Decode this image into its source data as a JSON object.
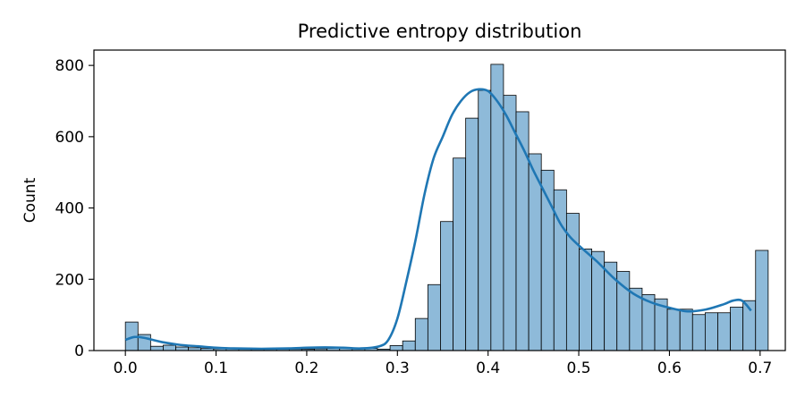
{
  "chart_data": {
    "type": "bar",
    "title": "Predictive entropy distribution",
    "xlabel": "",
    "ylabel": "Count",
    "xlim": [
      -0.0347,
      0.7278
    ],
    "ylim": [
      0,
      843
    ],
    "grid": false,
    "bin_width": 0.0139,
    "bins_start": 0.0,
    "xticks": [
      "0.0",
      "0.1",
      "0.2",
      "0.3",
      "0.4",
      "0.5",
      "0.6",
      "0.7"
    ],
    "xtick_values": [
      0.0,
      0.1,
      0.2,
      0.3,
      0.4,
      0.5,
      0.6,
      0.7
    ],
    "yticks": [
      "0",
      "200",
      "400",
      "600",
      "800"
    ],
    "ytick_values": [
      0,
      200,
      400,
      600,
      800
    ],
    "values": [
      80,
      45,
      12,
      15,
      10,
      8,
      6,
      5,
      5,
      4,
      4,
      4,
      4,
      4,
      4,
      5,
      6,
      8,
      7,
      6,
      4,
      14,
      27,
      90,
      185,
      362,
      540,
      652,
      730,
      803,
      716,
      670,
      552,
      506,
      451,
      385,
      285,
      278,
      248,
      222,
      175,
      157,
      145,
      116,
      116,
      101,
      106,
      106,
      122,
      140,
      281
    ],
    "bar_color": "#8ebad9",
    "edge_color": "#000000",
    "kde": {
      "color": "#1f77b4",
      "x": [
        0.0,
        0.01,
        0.02,
        0.03,
        0.04,
        0.06,
        0.08,
        0.1,
        0.12,
        0.15,
        0.18,
        0.2,
        0.22,
        0.24,
        0.26,
        0.28,
        0.29,
        0.3,
        0.31,
        0.32,
        0.33,
        0.34,
        0.35,
        0.36,
        0.37,
        0.38,
        0.39,
        0.4,
        0.41,
        0.42,
        0.43,
        0.44,
        0.45,
        0.46,
        0.47,
        0.48,
        0.49,
        0.5,
        0.52,
        0.54,
        0.56,
        0.58,
        0.6,
        0.62,
        0.64,
        0.66,
        0.67,
        0.68,
        0.69
      ],
      "y": [
        30,
        38,
        36,
        30,
        24,
        16,
        12,
        8,
        6,
        5,
        6,
        8,
        9,
        8,
        6,
        12,
        30,
        90,
        195,
        310,
        440,
        540,
        600,
        660,
        700,
        725,
        733,
        728,
        700,
        660,
        610,
        560,
        505,
        455,
        405,
        355,
        320,
        295,
        250,
        200,
        160,
        135,
        120,
        110,
        115,
        130,
        140,
        140,
        112
      ]
    }
  }
}
